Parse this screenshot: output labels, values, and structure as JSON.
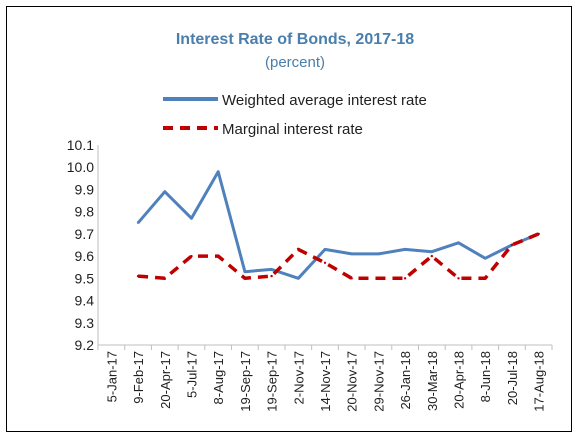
{
  "chart_data": {
    "type": "line",
    "title": "Interest Rate of Bonds, 2017-18",
    "subtitle": "(percent)",
    "xlabel": "",
    "ylabel": "",
    "categories": [
      "5-Jan-17",
      "9-Feb-17",
      "20-Apr-17",
      "5-Jul-17",
      "8-Aug-17",
      "19-Sep-17",
      "19-Sep-17",
      "2-Nov-17",
      "14-Nov-17",
      "20-Nov-17",
      "29-Nov-17",
      "26-Jan-18",
      "30-Mar-18",
      "20-Apr-18",
      "8-Jun-18",
      "20-Jul-18",
      "17-Aug-18"
    ],
    "ylim": [
      9.2,
      10.1
    ],
    "yticks": [
      "9.2",
      "9.3",
      "9.4",
      "9.5",
      "9.6",
      "9.7",
      "9.8",
      "9.9",
      "10.0",
      "10.1"
    ],
    "grid": false,
    "legend_position": "top-center",
    "series": [
      {
        "name": "Weighted average interest rate",
        "style": "solid",
        "color": "#4f81bd",
        "values": [
          null,
          9.75,
          9.89,
          9.77,
          9.98,
          9.53,
          9.54,
          9.5,
          9.63,
          9.61,
          9.61,
          9.63,
          9.62,
          9.66,
          9.59,
          9.65,
          9.7
        ]
      },
      {
        "name": "Marginal interest rate",
        "style": "dashed",
        "color": "#c00000",
        "values": [
          null,
          9.51,
          9.5,
          9.6,
          9.6,
          9.5,
          9.51,
          9.63,
          9.57,
          9.5,
          9.5,
          9.5,
          9.6,
          9.5,
          9.5,
          9.65,
          9.7
        ]
      }
    ]
  }
}
